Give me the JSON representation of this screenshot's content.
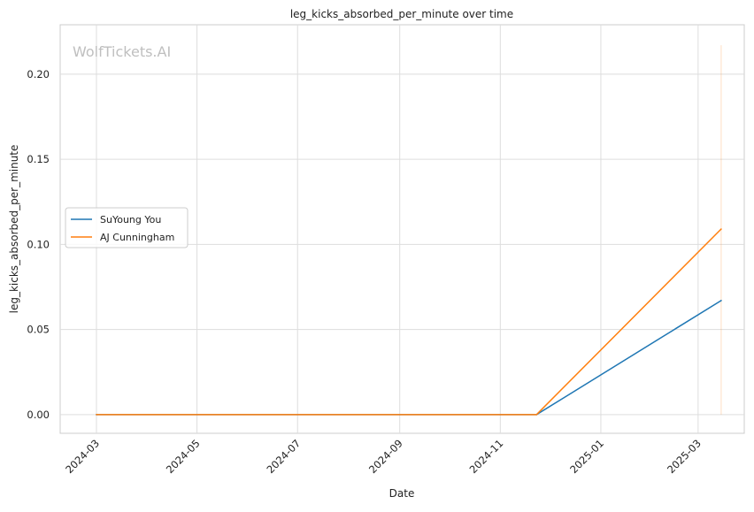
{
  "chart_data": {
    "type": "line",
    "title": "leg_kicks_absorbed_per_minute over time",
    "xlabel": "Date",
    "ylabel": "leg_kicks_absorbed_per_minute",
    "watermark": "WolfTickets.AI",
    "x_ticks": [
      "2024-03",
      "2024-05",
      "2024-07",
      "2024-09",
      "2024-11",
      "2025-01",
      "2025-03"
    ],
    "y_ticks": [
      "0.00",
      "0.05",
      "0.10",
      "0.15",
      "0.20"
    ],
    "ylim": [
      -0.011,
      0.229
    ],
    "xlim": [
      "2024-02-08",
      "2025-03-29"
    ],
    "grid": true,
    "legend_position": "center-left",
    "series": [
      {
        "name": "SuYoung You",
        "color": "#1f77b4",
        "points": [
          {
            "x": "2024-03-01",
            "y": 0.0
          },
          {
            "x": "2024-11-23",
            "y": 0.0
          },
          {
            "x": "2025-03-15",
            "y": 0.067
          }
        ]
      },
      {
        "name": "AJ Cunningham",
        "color": "#ff7f0e",
        "points": [
          {
            "x": "2024-03-01",
            "y": 0.0
          },
          {
            "x": "2024-11-23",
            "y": 0.0
          },
          {
            "x": "2025-03-15",
            "y": 0.109
          }
        ],
        "band": {
          "x": "2025-03-15",
          "low": 0.0,
          "high": 0.217
        }
      }
    ]
  }
}
